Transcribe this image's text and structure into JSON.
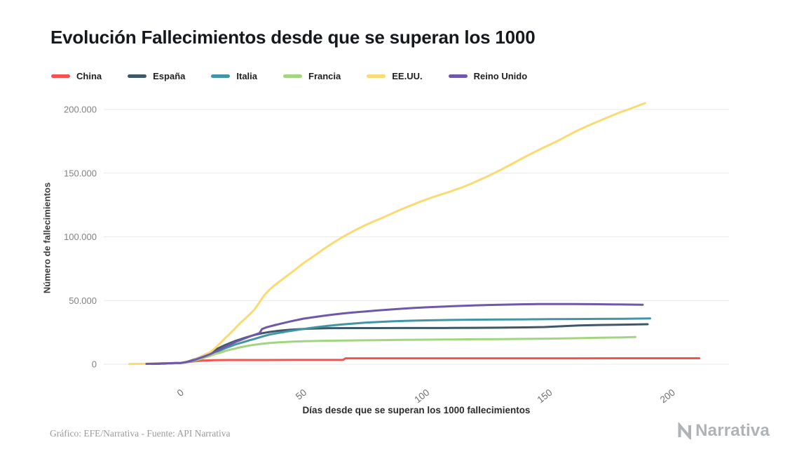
{
  "footer": {
    "credit": "Gráfico: EFE/Narrativa - Fuente: API Narrativa",
    "brand": "Narrativa"
  },
  "chart_data": {
    "type": "line",
    "title": "Evolución Fallecimientos desde que se superan los 1000",
    "xlabel": "Días desde que se superan los 1000 fallecimientos",
    "ylabel": "Número de fallecimientos",
    "xlim": [
      -31,
      223
    ],
    "ylim": [
      0,
      205000
    ],
    "grid": "horizontal",
    "legend_position": "top-left",
    "x_ticks": [
      {
        "value": 0,
        "label": "0"
      },
      {
        "value": 50,
        "label": "50"
      },
      {
        "value": 100,
        "label": "100"
      },
      {
        "value": 150,
        "label": "150"
      },
      {
        "value": 200,
        "label": "200"
      }
    ],
    "y_ticks": [
      {
        "value": 0,
        "label": "0"
      },
      {
        "value": 50000,
        "label": "50.000"
      },
      {
        "value": 100000,
        "label": "100.000"
      },
      {
        "value": 150000,
        "label": "150.000"
      },
      {
        "value": 200000,
        "label": "200.000"
      }
    ],
    "series": [
      {
        "name": "China",
        "color": "#f4524f",
        "points": [
          [
            -12,
            200
          ],
          [
            -9,
            350
          ],
          [
            -6,
            550
          ],
          [
            -3,
            800
          ],
          [
            0,
            1020
          ],
          [
            2,
            1500
          ],
          [
            4,
            2000
          ],
          [
            6,
            2450
          ],
          [
            8,
            2750
          ],
          [
            10,
            3000
          ],
          [
            13,
            3170
          ],
          [
            16,
            3250
          ],
          [
            20,
            3290
          ],
          [
            30,
            3320
          ],
          [
            45,
            3335
          ],
          [
            60,
            3340
          ],
          [
            66,
            3345
          ],
          [
            67,
            4630
          ],
          [
            80,
            4634
          ],
          [
            100,
            4638
          ],
          [
            130,
            4645
          ],
          [
            160,
            4650
          ],
          [
            190,
            4660
          ],
          [
            211,
            4670
          ]
        ]
      },
      {
        "name": "España",
        "color": "#3d5866",
        "points": [
          [
            -9,
            300
          ],
          [
            -6,
            500
          ],
          [
            -3,
            750
          ],
          [
            0,
            1002
          ],
          [
            2,
            1700
          ],
          [
            4,
            2800
          ],
          [
            6,
            4100
          ],
          [
            8,
            5700
          ],
          [
            10,
            7500
          ],
          [
            12,
            9400
          ],
          [
            14,
            11300
          ],
          [
            16,
            13200
          ],
          [
            18,
            15000
          ],
          [
            20,
            16600
          ],
          [
            22,
            18100
          ],
          [
            24,
            19400
          ],
          [
            26,
            20700
          ],
          [
            28,
            21900
          ],
          [
            30,
            23000
          ],
          [
            33,
            24300
          ],
          [
            36,
            25300
          ],
          [
            40,
            26300
          ],
          [
            44,
            27000
          ],
          [
            48,
            27500
          ],
          [
            52,
            27900
          ],
          [
            56,
            28100
          ],
          [
            60,
            28300
          ],
          [
            70,
            28350
          ],
          [
            80,
            28400
          ],
          [
            90,
            28420
          ],
          [
            100,
            28450
          ],
          [
            110,
            28500
          ],
          [
            120,
            28600
          ],
          [
            130,
            28700
          ],
          [
            140,
            28900
          ],
          [
            148,
            29200
          ],
          [
            155,
            29800
          ],
          [
            162,
            30400
          ],
          [
            170,
            30800
          ],
          [
            180,
            31100
          ],
          [
            190,
            31400
          ]
        ]
      },
      {
        "name": "Italia",
        "color": "#4295a5",
        "points": [
          [
            -10,
            250
          ],
          [
            -7,
            450
          ],
          [
            -4,
            700
          ],
          [
            0,
            1016
          ],
          [
            2,
            1440
          ],
          [
            4,
            2160
          ],
          [
            6,
            2980
          ],
          [
            8,
            4030
          ],
          [
            10,
            5480
          ],
          [
            12,
            7500
          ],
          [
            14,
            9140
          ],
          [
            16,
            10780
          ],
          [
            18,
            12430
          ],
          [
            20,
            13920
          ],
          [
            22,
            15360
          ],
          [
            24,
            16520
          ],
          [
            26,
            17670
          ],
          [
            28,
            18850
          ],
          [
            30,
            19900
          ],
          [
            33,
            21650
          ],
          [
            36,
            23230
          ],
          [
            40,
            24650
          ],
          [
            44,
            25970
          ],
          [
            48,
            27100
          ],
          [
            52,
            28240
          ],
          [
            56,
            29320
          ],
          [
            60,
            30200
          ],
          [
            65,
            31110
          ],
          [
            70,
            31910
          ],
          [
            75,
            32620
          ],
          [
            80,
            33140
          ],
          [
            85,
            33600
          ],
          [
            90,
            33960
          ],
          [
            95,
            34220
          ],
          [
            100,
            34450
          ],
          [
            110,
            34780
          ],
          [
            120,
            34970
          ],
          [
            130,
            35100
          ],
          [
            140,
            35230
          ],
          [
            150,
            35400
          ],
          [
            160,
            35500
          ],
          [
            170,
            35600
          ],
          [
            180,
            35700
          ],
          [
            191,
            36000
          ]
        ]
      },
      {
        "name": "Francia",
        "color": "#a2d57f",
        "points": [
          [
            -8,
            350
          ],
          [
            -4,
            650
          ],
          [
            0,
            1100
          ],
          [
            2,
            1700
          ],
          [
            4,
            2350
          ],
          [
            6,
            3050
          ],
          [
            8,
            4050
          ],
          [
            10,
            5400
          ],
          [
            12,
            6550
          ],
          [
            14,
            8100
          ],
          [
            16,
            9050
          ],
          [
            18,
            10350
          ],
          [
            20,
            11450
          ],
          [
            22,
            12250
          ],
          [
            24,
            13250
          ],
          [
            26,
            14000
          ],
          [
            28,
            14700
          ],
          [
            30,
            15300
          ],
          [
            33,
            16050
          ],
          [
            36,
            16650
          ],
          [
            40,
            17200
          ],
          [
            45,
            17700
          ],
          [
            50,
            18000
          ],
          [
            55,
            18250
          ],
          [
            60,
            18450
          ],
          [
            70,
            18700
          ],
          [
            80,
            18900
          ],
          [
            90,
            19100
          ],
          [
            100,
            19300
          ],
          [
            110,
            19450
          ],
          [
            120,
            19600
          ],
          [
            130,
            19750
          ],
          [
            140,
            19900
          ],
          [
            150,
            20100
          ],
          [
            160,
            20400
          ],
          [
            170,
            20750
          ],
          [
            178,
            21000
          ],
          [
            185,
            21300
          ]
        ]
      },
      {
        "name": "EE.UU.",
        "color": "#fada72",
        "points": [
          [
            -21,
            150
          ],
          [
            -18,
            250
          ],
          [
            -15,
            350
          ],
          [
            -12,
            500
          ],
          [
            -9,
            650
          ],
          [
            -6,
            800
          ],
          [
            -3,
            920
          ],
          [
            0,
            1050
          ],
          [
            2,
            1700
          ],
          [
            4,
            2500
          ],
          [
            6,
            3900
          ],
          [
            8,
            5600
          ],
          [
            10,
            7400
          ],
          [
            12,
            9600
          ],
          [
            14,
            12800
          ],
          [
            16,
            16500
          ],
          [
            18,
            20500
          ],
          [
            20,
            24000
          ],
          [
            22,
            28000
          ],
          [
            24,
            32000
          ],
          [
            26,
            35500
          ],
          [
            28,
            39000
          ],
          [
            30,
            43000
          ],
          [
            32,
            48700
          ],
          [
            34,
            54300
          ],
          [
            36,
            58400
          ],
          [
            38,
            61700
          ],
          [
            40,
            64700
          ],
          [
            43,
            69100
          ],
          [
            46,
            73400
          ],
          [
            50,
            79500
          ],
          [
            54,
            84700
          ],
          [
            58,
            90300
          ],
          [
            62,
            95300
          ],
          [
            66,
            100000
          ],
          [
            70,
            104300
          ],
          [
            74,
            108200
          ],
          [
            78,
            111700
          ],
          [
            82,
            114900
          ],
          [
            86,
            118400
          ],
          [
            90,
            121800
          ],
          [
            94,
            124900
          ],
          [
            98,
            128000
          ],
          [
            102,
            130800
          ],
          [
            106,
            133300
          ],
          [
            110,
            135800
          ],
          [
            114,
            138500
          ],
          [
            118,
            141600
          ],
          [
            122,
            145000
          ],
          [
            126,
            148600
          ],
          [
            130,
            152400
          ],
          [
            134,
            156500
          ],
          [
            138,
            160600
          ],
          [
            142,
            164700
          ],
          [
            146,
            168600
          ],
          [
            150,
            172200
          ],
          [
            154,
            176000
          ],
          [
            158,
            180000
          ],
          [
            162,
            184000
          ],
          [
            166,
            187500
          ],
          [
            170,
            190800
          ],
          [
            174,
            194000
          ],
          [
            178,
            197200
          ],
          [
            182,
            200000
          ],
          [
            186,
            202800
          ],
          [
            189,
            205000
          ]
        ]
      },
      {
        "name": "Reino Unido",
        "color": "#6f58a8",
        "points": [
          [
            -14,
            300
          ],
          [
            -11,
            450
          ],
          [
            -8,
            600
          ],
          [
            -5,
            780
          ],
          [
            -2,
            930
          ],
          [
            0,
            1019
          ],
          [
            2,
            1650
          ],
          [
            4,
            2550
          ],
          [
            6,
            3610
          ],
          [
            8,
            5070
          ],
          [
            10,
            6430
          ],
          [
            12,
            8000
          ],
          [
            14,
            9880
          ],
          [
            16,
            11600
          ],
          [
            18,
            13700
          ],
          [
            20,
            15500
          ],
          [
            22,
            17300
          ],
          [
            24,
            18750
          ],
          [
            26,
            20300
          ],
          [
            28,
            21700
          ],
          [
            30,
            23100
          ],
          [
            32,
            24400
          ],
          [
            33,
            27600
          ],
          [
            35,
            29100
          ],
          [
            38,
            30600
          ],
          [
            41,
            32000
          ],
          [
            45,
            33800
          ],
          [
            50,
            35800
          ],
          [
            54,
            36900
          ],
          [
            58,
            38000
          ],
          [
            62,
            39000
          ],
          [
            66,
            39900
          ],
          [
            70,
            40600
          ],
          [
            75,
            41400
          ],
          [
            80,
            42200
          ],
          [
            85,
            42900
          ],
          [
            90,
            43600
          ],
          [
            95,
            44200
          ],
          [
            100,
            44700
          ],
          [
            105,
            45100
          ],
          [
            110,
            45500
          ],
          [
            115,
            45900
          ],
          [
            120,
            46200
          ],
          [
            125,
            46500
          ],
          [
            130,
            46700
          ],
          [
            135,
            46900
          ],
          [
            140,
            47100
          ],
          [
            145,
            47200
          ],
          [
            150,
            47250
          ],
          [
            155,
            47250
          ],
          [
            160,
            47200
          ],
          [
            165,
            47150
          ],
          [
            170,
            47100
          ],
          [
            175,
            47000
          ],
          [
            180,
            46900
          ],
          [
            185,
            46800
          ],
          [
            188,
            46700
          ]
        ]
      }
    ]
  }
}
